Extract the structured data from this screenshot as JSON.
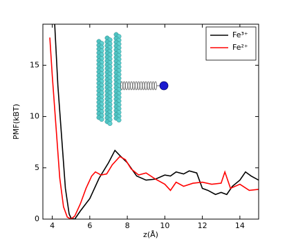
{
  "chart_data": {
    "type": "line",
    "xlabel": "z(Å)",
    "ylabel": "PMF(kBT)",
    "xlim": [
      3.5,
      15
    ],
    "ylim": [
      0,
      19
    ],
    "xticks": [
      4,
      6,
      8,
      10,
      12,
      14
    ],
    "yticks": [
      0,
      5,
      10,
      15
    ],
    "legend": "upper right",
    "series": [
      {
        "name": "Fe³⁺",
        "color": "#000000",
        "x": [
          4.13,
          4.3,
          4.5,
          4.7,
          4.9,
          5.0,
          5.2,
          5.5,
          6.0,
          6.5,
          7.0,
          7.34,
          7.6,
          8.0,
          8.5,
          9.0,
          9.5,
          10.0,
          10.3,
          10.6,
          11.0,
          11.3,
          11.7,
          12.0,
          12.3,
          12.7,
          13.0,
          13.3,
          13.6,
          14.0,
          14.3,
          14.6,
          15.0
        ],
        "values": [
          19,
          13,
          8,
          3,
          0.5,
          0.1,
          0,
          0.8,
          2.0,
          4.0,
          5.5,
          6.7,
          6.2,
          5.5,
          4.2,
          3.8,
          3.9,
          4.3,
          4.2,
          4.6,
          4.4,
          4.7,
          4.5,
          3.0,
          2.8,
          2.4,
          2.6,
          2.4,
          3.2,
          3.8,
          4.6,
          4.2,
          3.8
        ]
      },
      {
        "name": "Fe²⁺",
        "color": "#ff0000",
        "x": [
          3.87,
          4.0,
          4.2,
          4.4,
          4.6,
          4.8,
          5.0,
          5.2,
          5.5,
          5.8,
          6.1,
          6.3,
          6.6,
          6.9,
          7.2,
          7.6,
          7.9,
          8.2,
          8.6,
          9.0,
          9.5,
          10.0,
          10.3,
          10.6,
          11.0,
          11.5,
          12.0,
          12.5,
          13.0,
          13.2,
          13.5,
          14.0,
          14.5,
          15.0
        ],
        "values": [
          17.7,
          14,
          9,
          4,
          1.2,
          0.2,
          0,
          0.3,
          1.5,
          3.0,
          4.2,
          4.6,
          4.3,
          4.4,
          5.3,
          6.1,
          5.8,
          4.9,
          4.3,
          4.5,
          3.9,
          3.4,
          2.8,
          3.6,
          3.2,
          3.5,
          3.6,
          3.4,
          3.5,
          4.6,
          3.0,
          3.4,
          2.8,
          2.9
        ]
      }
    ]
  }
}
